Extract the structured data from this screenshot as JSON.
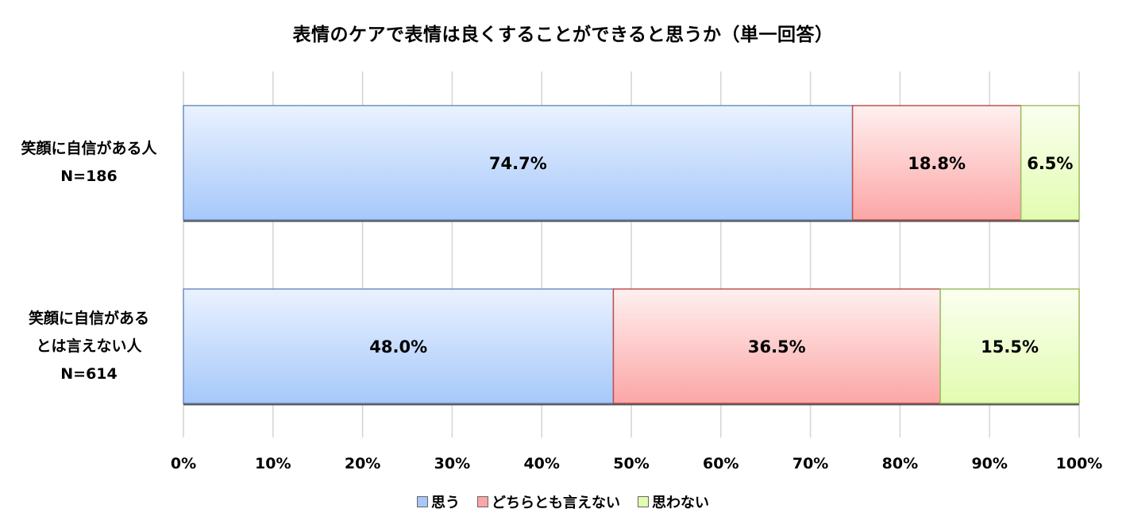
{
  "chart_data": {
    "type": "bar",
    "orientation": "horizontal",
    "stacked": true,
    "title": "表情のケアで表情は良くすることができると思うか（単一回答）",
    "categories": [
      [
        "笑顔に自信がある人",
        "N=186"
      ],
      [
        "笑顔に自信がある",
        "とは言えない人",
        "N=614"
      ]
    ],
    "series": [
      {
        "name": "思う",
        "values": [
          74.7,
          48.0
        ],
        "labels": [
          "74.7%",
          "48.0%"
        ],
        "color": "#a6c8fa"
      },
      {
        "name": "どちらとも言えない",
        "values": [
          18.8,
          36.5
        ],
        "labels": [
          "18.8%",
          "36.5%"
        ],
        "color": "#fca6a6"
      },
      {
        "name": "思わない",
        "values": [
          6.5,
          15.5
        ],
        "labels": [
          "6.5%",
          "15.5%"
        ],
        "color": "#e2fcb0"
      }
    ],
    "xlim": [
      0,
      100
    ],
    "xticks": [
      "0%",
      "10%",
      "20%",
      "30%",
      "40%",
      "50%",
      "60%",
      "70%",
      "80%",
      "90%",
      "100%"
    ],
    "grid": true,
    "legend_position": "bottom"
  }
}
